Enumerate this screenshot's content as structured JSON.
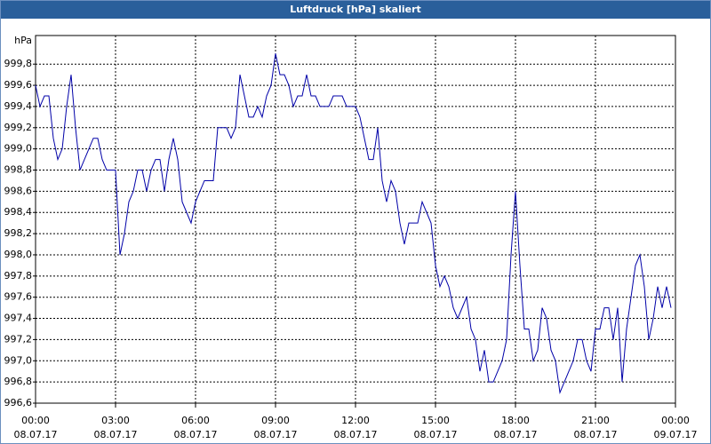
{
  "chart_data": {
    "type": "line",
    "title": "Luftdruck [hPa] skaliert",
    "y_unit": "hPa",
    "x": [
      0,
      10,
      20,
      30,
      40,
      50,
      60,
      70,
      80,
      90,
      100,
      110,
      120,
      130,
      140,
      150,
      160,
      170,
      180,
      190,
      200,
      210,
      220,
      230,
      240,
      250,
      260,
      270,
      280,
      290,
      300,
      310,
      320,
      330,
      340,
      350,
      360,
      370,
      380,
      390,
      400,
      410,
      420,
      430,
      440,
      450,
      460,
      470,
      480,
      490,
      500,
      510,
      520,
      530,
      540,
      550,
      560,
      570,
      580,
      590,
      600,
      610,
      620,
      630,
      640,
      650,
      660,
      670,
      680,
      690,
      700,
      710,
      720,
      730,
      740,
      750,
      760,
      770,
      780,
      790,
      800,
      810,
      820,
      830,
      840,
      850,
      860,
      870,
      880,
      890,
      900,
      910,
      920,
      930,
      940,
      950,
      960,
      970,
      980,
      990,
      1000,
      1010,
      1020,
      1030,
      1040,
      1050,
      1060,
      1070,
      1080,
      1090,
      1100,
      1110,
      1120,
      1130,
      1140,
      1150,
      1160,
      1170,
      1180,
      1190,
      1200,
      1210,
      1220,
      1230,
      1240,
      1250,
      1260,
      1270,
      1280,
      1290,
      1300,
      1310,
      1320,
      1330,
      1340,
      1350,
      1360,
      1370,
      1380,
      1390,
      1400,
      1410,
      1420,
      1430
    ],
    "series": [
      {
        "color": "#0000a8",
        "values": [
          999.6,
          999.4,
          999.5,
          999.5,
          999.1,
          998.9,
          999.0,
          999.4,
          999.7,
          999.2,
          998.8,
          998.9,
          999.0,
          999.1,
          999.1,
          998.9,
          998.8,
          998.8,
          998.8,
          998.0,
          998.2,
          998.5,
          998.6,
          998.8,
          998.8,
          998.6,
          998.8,
          998.9,
          998.9,
          998.6,
          998.9,
          999.1,
          998.9,
          998.5,
          998.4,
          998.3,
          998.5,
          998.6,
          998.7,
          998.7,
          998.7,
          999.2,
          999.2,
          999.2,
          999.1,
          999.2,
          999.7,
          999.5,
          999.3,
          999.3,
          999.4,
          999.3,
          999.5,
          999.6,
          999.9,
          999.7,
          999.7,
          999.6,
          999.4,
          999.5,
          999.5,
          999.7,
          999.5,
          999.5,
          999.4,
          999.4,
          999.4,
          999.5,
          999.5,
          999.5,
          999.4,
          999.4,
          999.4,
          999.3,
          999.1,
          998.9,
          998.9,
          999.2,
          998.7,
          998.5,
          998.7,
          998.6,
          998.3,
          998.1,
          998.3,
          998.3,
          998.3,
          998.5,
          998.4,
          998.3,
          997.9,
          997.7,
          997.8,
          997.7,
          997.5,
          997.4,
          997.5,
          997.6,
          997.3,
          997.2,
          996.9,
          997.1,
          996.8,
          996.8,
          996.9,
          997.0,
          997.2,
          998.0,
          998.6,
          997.9,
          997.3,
          997.3,
          997.0,
          997.1,
          997.5,
          997.4,
          997.1,
          997.0,
          996.7,
          996.8,
          996.9,
          997.0,
          997.2,
          997.2,
          997.0,
          996.9,
          997.3,
          997.3,
          997.5,
          997.5,
          997.2,
          997.5,
          996.8,
          997.3,
          997.6,
          997.9,
          998.0,
          997.7,
          997.2,
          997.4,
          997.7,
          997.5,
          997.7,
          997.5
        ]
      }
    ],
    "xlim": [
      0,
      1440
    ],
    "xticks": [
      {
        "value": 0,
        "label": "00:00"
      },
      {
        "value": 180,
        "label": "03:00"
      },
      {
        "value": 360,
        "label": "06:00"
      },
      {
        "value": 540,
        "label": "09:00"
      },
      {
        "value": 720,
        "label": "12:00"
      },
      {
        "value": 900,
        "label": "15:00"
      },
      {
        "value": 1080,
        "label": "18:00"
      },
      {
        "value": 1260,
        "label": "21:00"
      },
      {
        "value": 1440,
        "label": "00:00"
      }
    ],
    "xtick_dates": [
      "08.07.17",
      "08.07.17",
      "08.07.17",
      "08.07.17",
      "08.07.17",
      "08.07.17",
      "08.07.17",
      "08.07.17",
      "09.07.17"
    ],
    "ylim": [
      996.6,
      1000.07
    ],
    "yticks": [
      {
        "value": 996.6,
        "label": "996,6"
      },
      {
        "value": 996.8,
        "label": "996,8"
      },
      {
        "value": 997.0,
        "label": "997,0"
      },
      {
        "value": 997.2,
        "label": "997,2"
      },
      {
        "value": 997.4,
        "label": "997,4"
      },
      {
        "value": 997.6,
        "label": "997,6"
      },
      {
        "value": 997.8,
        "label": "997,8"
      },
      {
        "value": 998.0,
        "label": "998,0"
      },
      {
        "value": 998.2,
        "label": "998,2"
      },
      {
        "value": 998.4,
        "label": "998,4"
      },
      {
        "value": 998.6,
        "label": "998,6"
      },
      {
        "value": 998.8,
        "label": "998,8"
      },
      {
        "value": 999.0,
        "label": "999,0"
      },
      {
        "value": 999.2,
        "label": "999,2"
      },
      {
        "value": 999.4,
        "label": "999,4"
      },
      {
        "value": 999.6,
        "label": "999,6"
      },
      {
        "value": 999.8,
        "label": "999,8"
      }
    ],
    "grid": true
  }
}
